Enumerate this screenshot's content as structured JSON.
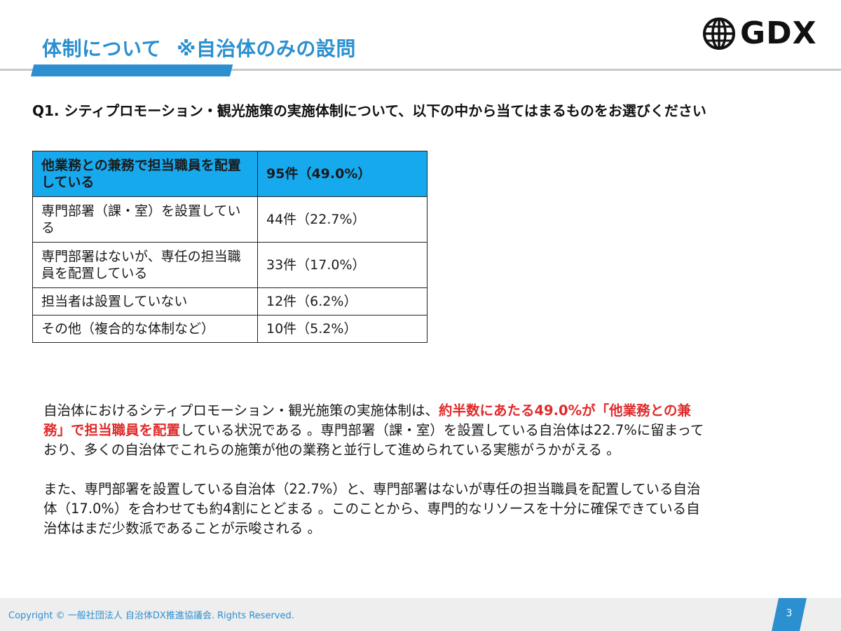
{
  "header": {
    "title": "体制について",
    "subtitle": "※自治体のみの設問"
  },
  "logo": {
    "icon": "globe-icon",
    "text": "GDX"
  },
  "question": "Q1. シティプロモーション・観光施策の実施体制について、以下の中から当てはまるものをお選びください",
  "table": {
    "rows": [
      {
        "label": "他業務との兼務で担当職員を配置している",
        "value": "95件（49.0%）",
        "highlight": true
      },
      {
        "label": "専門部署（課・室）を設置している",
        "value": "44件（22.7%）",
        "highlight": false
      },
      {
        "label": "専門部署はないが、専任の担当職員を配置している",
        "value": "33件（17.0%）",
        "highlight": false
      },
      {
        "label": "担当者は設置していない",
        "value": "12件（6.2%）",
        "highlight": false
      },
      {
        "label": "その他（複合的な体制など）",
        "value": "10件（5.2%）",
        "highlight": false
      }
    ],
    "highlight_color": "#17a9ee"
  },
  "body": {
    "p1_before": "自治体におけるシティプロモーション・観光施策の実施体制は、",
    "p1_red1": "約半数にあたる49.0%が「他業務との兼務」で担当職員を配置",
    "p1_after": "している状況である 。専門部署（課・室）を設置している自治体は22.7%に留まっており、多くの自治体でこれらの施策が他の業務と並行して進められている実態がうかがえる 。",
    "p2": "また、専門部署を設置している自治体（22.7%）と、専門部署はないが専任の担当職員を配置している自治体（17.0%）を合わせても約4割にとどまる 。このことから、専門的なリソースを十分に確保できている自治体はまだ少数派であることが示唆される 。"
  },
  "footer": {
    "copyright": "Copyright © 一般社団法人 自治体DX推進協議会. Rights Reserved.",
    "page": "3"
  },
  "colors": {
    "accent": "#2b8fd0",
    "emphasis": "#e02a2a"
  }
}
